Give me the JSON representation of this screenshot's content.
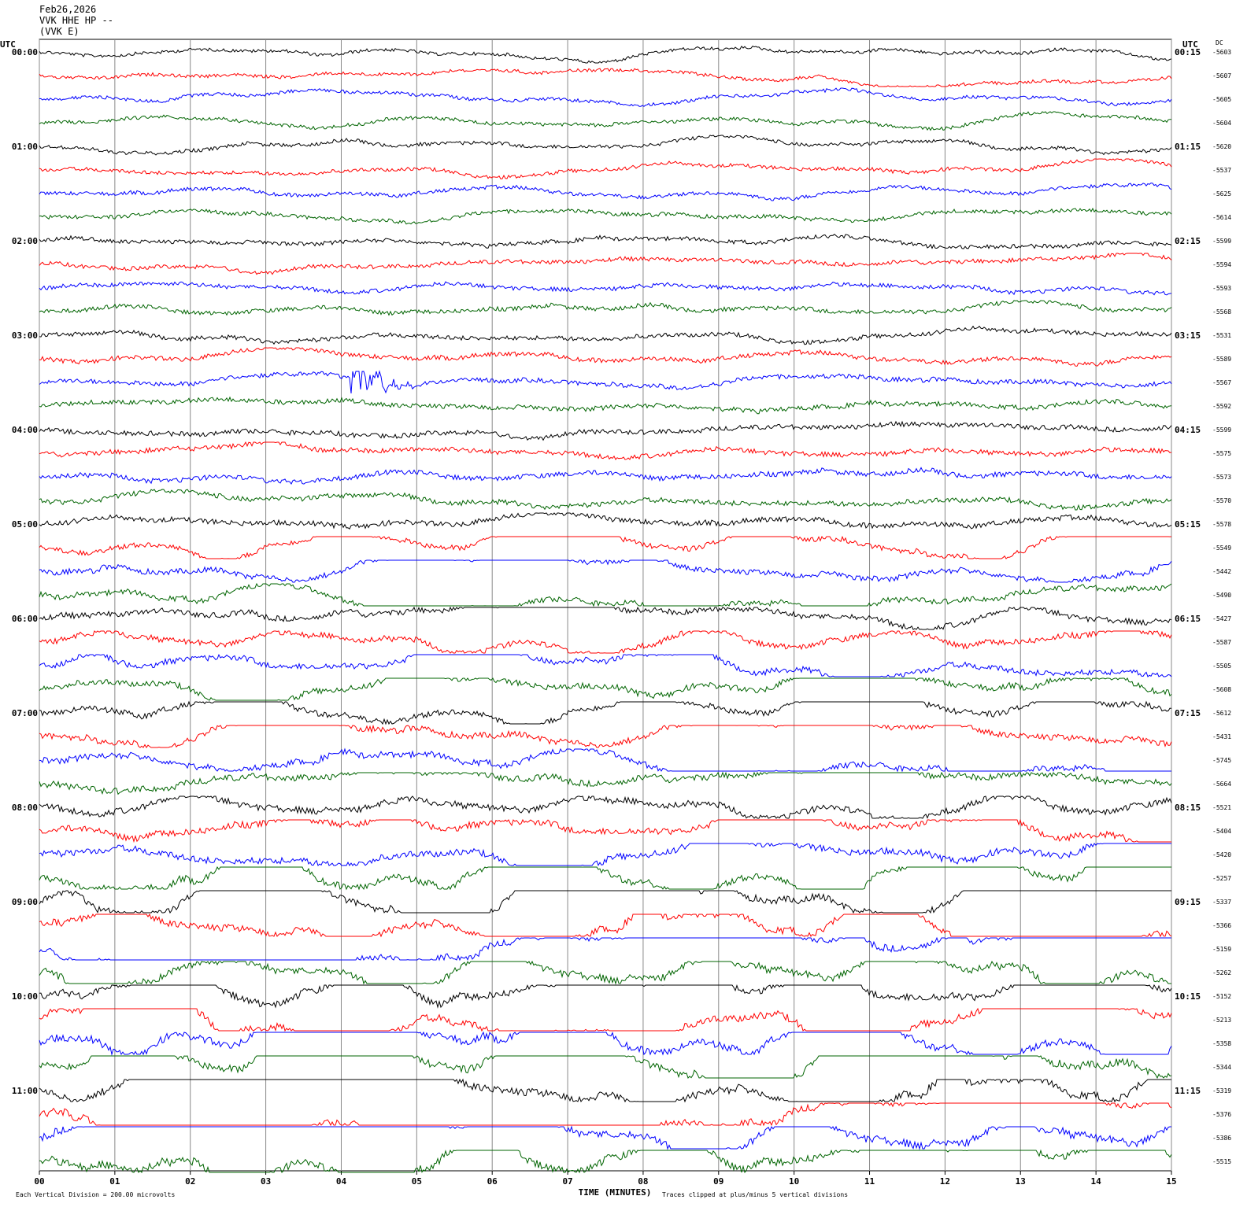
{
  "chart_data": {
    "type": "helicorder",
    "title_lines": [
      "Feb26,2026",
      "VVK HHE HP --",
      "(VVK E)"
    ],
    "left_axis_label": "UTC",
    "right_axis_label": "UTC",
    "dc_label": "DC",
    "left_row_labels": [
      "00:00",
      "01:00",
      "02:00",
      "03:00",
      "04:00",
      "05:00",
      "06:00",
      "07:00",
      "08:00",
      "09:00",
      "10:00",
      "11:00"
    ],
    "right_row_labels": [
      "00:15",
      "01:15",
      "02:15",
      "03:15",
      "04:15",
      "05:15",
      "06:15",
      "07:15",
      "08:15",
      "09:15",
      "10:15",
      "11:15"
    ],
    "dc_values": [
      -5603,
      -5607,
      -5605,
      -5604,
      -5620,
      -5537,
      -5625,
      -5614,
      -5599,
      -5594,
      -5593,
      -5568,
      -5531,
      -5589,
      -5567,
      -5592,
      -5599,
      -5575,
      -5573,
      -5570,
      -5578,
      -5549,
      -5442,
      -5490,
      -5427,
      -5587,
      -5505,
      -5608,
      -5612,
      -5431,
      -5745,
      -5664,
      -5521,
      -5404,
      -5420,
      -5257,
      -5337,
      -5366,
      -5159,
      -5262,
      -5152,
      -5213,
      -5358,
      -5344,
      -5319,
      -5376,
      -5386,
      -5515
    ],
    "trace_colors": [
      "#000000",
      "#ff0000",
      "#0000ff",
      "#006400"
    ],
    "xlim": [
      0,
      15
    ],
    "xticks": [
      {
        "value": 0,
        "label": "00"
      },
      {
        "value": 1,
        "label": "01"
      },
      {
        "value": 2,
        "label": "02"
      },
      {
        "value": 3,
        "label": "03"
      },
      {
        "value": 4,
        "label": "04"
      },
      {
        "value": 5,
        "label": "05"
      },
      {
        "value": 6,
        "label": "06"
      },
      {
        "value": 7,
        "label": "07"
      },
      {
        "value": 8,
        "label": "08"
      },
      {
        "value": 9,
        "label": "09"
      },
      {
        "value": 10,
        "label": "10"
      },
      {
        "value": 11,
        "label": "11"
      },
      {
        "value": 12,
        "label": "12"
      },
      {
        "value": 13,
        "label": "13"
      },
      {
        "value": 14,
        "label": "14"
      },
      {
        "value": 15,
        "label": "15"
      }
    ],
    "xlabel": "TIME (MINUTES)",
    "grid": true,
    "footer_left": "Each Vertical Division =  200.00 microvolts",
    "footer_right": "Traces clipped at plus/minus 5 vertical divisions"
  }
}
